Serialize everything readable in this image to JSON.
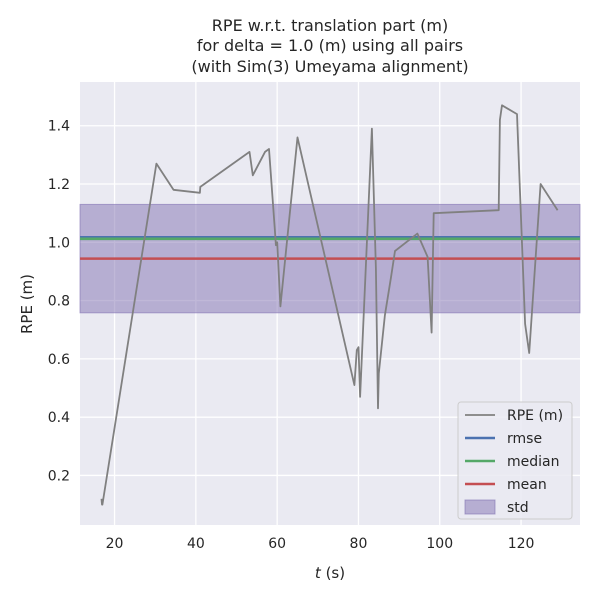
{
  "chart_data": {
    "type": "line",
    "title_lines": [
      "RPE w.r.t. translation part (m)",
      "for delta = 1.0 (m) using all pairs",
      "(with Sim(3) Umeyama alignment)"
    ],
    "xlabel_italic": "t",
    "xlabel_rest": " (s)",
    "ylabel": "RPE (m)",
    "xlim": [
      11.5,
      134.5
    ],
    "ylim": [
      0.03,
      1.55
    ],
    "xticks": [
      20,
      40,
      60,
      80,
      100,
      120
    ],
    "yticks": [
      0.2,
      0.4,
      0.6,
      0.8,
      1.0,
      1.2,
      1.4
    ],
    "grid": true,
    "legend_position": "lower-right",
    "series": [
      {
        "name": "RPE (m)",
        "color": "#808080",
        "x": [
          16.8,
          16.9,
          17.0,
          30.3,
          34.5,
          41.0,
          41.1,
          53.2,
          54.0,
          57.0,
          58.0,
          59.4,
          59.7,
          60.0,
          60.8,
          65.0,
          79.0,
          79.6,
          80.0,
          80.4,
          83.3,
          84.3,
          84.8,
          85.0,
          86.5,
          88.0,
          89.0,
          94.5,
          97.0,
          98.0,
          98.5,
          114.5,
          114.8,
          115.3,
          119.0,
          121.0,
          122.0,
          124.8,
          129.0
        ],
        "y": [
          0.12,
          0.1,
          0.1,
          1.27,
          1.18,
          1.17,
          1.19,
          1.31,
          1.23,
          1.31,
          1.32,
          1.05,
          0.99,
          1.0,
          0.78,
          1.36,
          0.51,
          0.63,
          0.64,
          0.47,
          1.39,
          0.91,
          0.43,
          0.55,
          0.75,
          0.88,
          0.97,
          1.03,
          0.95,
          0.69,
          1.1,
          1.11,
          1.42,
          1.47,
          1.44,
          0.72,
          0.62,
          1.2,
          1.11
        ]
      },
      {
        "name": "rmse",
        "color": "#4c72b0",
        "value": 1.017
      },
      {
        "name": "median",
        "color": "#55a868",
        "value": 1.012
      },
      {
        "name": "mean",
        "color": "#c44e52",
        "value": 0.944
      },
      {
        "name": "std",
        "color": "#8172b2",
        "low": 0.758,
        "high": 1.13
      }
    ]
  }
}
